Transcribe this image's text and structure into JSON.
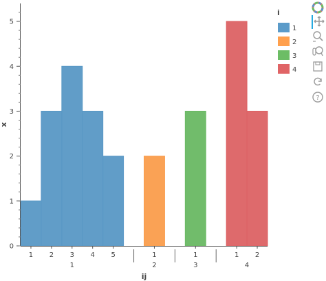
{
  "chart_data": {
    "type": "bar",
    "xlabel": "ij",
    "ylabel": "x",
    "ylim": [
      0,
      5.4
    ],
    "y_ticks": [
      0,
      1,
      2,
      3,
      4,
      5
    ],
    "grid": false,
    "legend_title": "i",
    "legend_position": "right",
    "groups": [
      {
        "label": "1",
        "categories": [
          "1",
          "2",
          "3",
          "4",
          "5"
        ],
        "values": [
          1,
          3,
          4,
          3,
          2
        ]
      },
      {
        "label": "2",
        "categories": [
          "1"
        ],
        "values": [
          2
        ]
      },
      {
        "label": "3",
        "categories": [
          "1"
        ],
        "values": [
          3
        ]
      },
      {
        "label": "4",
        "categories": [
          "1",
          "2"
        ],
        "values": [
          5,
          3
        ]
      }
    ],
    "series": [
      {
        "name": "1",
        "color": "#5b9bc9"
      },
      {
        "name": "2",
        "color": "#ffa04d"
      },
      {
        "name": "3",
        "color": "#6cbd65"
      },
      {
        "name": "4",
        "color": "#e06466"
      }
    ]
  },
  "toolbar": {
    "icons": [
      "bokeh-logo-icon",
      "pan-icon",
      "box-zoom-icon",
      "wheel-zoom-icon",
      "save-icon",
      "reset-icon",
      "help-icon"
    ]
  }
}
